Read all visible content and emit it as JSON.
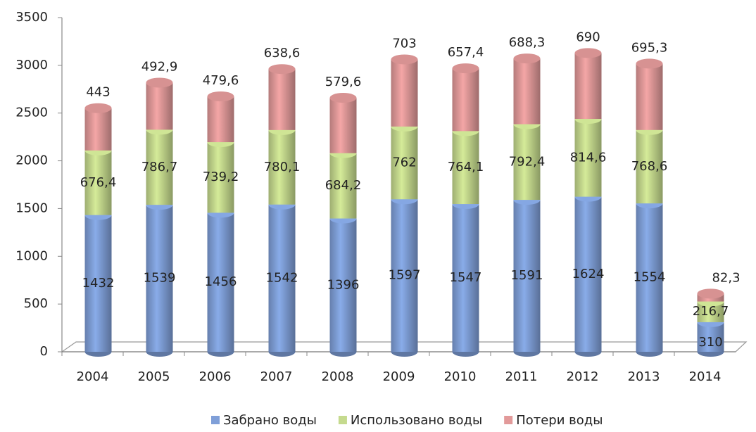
{
  "chart_data": {
    "type": "bar",
    "stacked": true,
    "categories": [
      "2004",
      "2005",
      "2006",
      "2007",
      "2008",
      "2009",
      "2010",
      "2011",
      "2012",
      "2013",
      "2014"
    ],
    "series": [
      {
        "name": "Забрано воды",
        "color": "#7f9fd8",
        "values": [
          1432,
          1539,
          1456,
          1542,
          1396,
          1597,
          1547,
          1591,
          1624,
          1554,
          310
        ]
      },
      {
        "name": "Использовано воды",
        "color": "#c5da8e",
        "values": [
          676.4,
          786.7,
          739.2,
          780.1,
          684.2,
          762,
          764.1,
          792.4,
          814.6,
          768.6,
          216.7
        ],
        "value_labels": [
          "676,4",
          "786,7",
          "739,2",
          "780,1",
          "684,2",
          "762",
          "764,1",
          "792,4",
          "814,6",
          "768,6",
          "216,7"
        ]
      },
      {
        "name": "Потери воды",
        "color": "#e29a9a",
        "values": [
          443,
          492.9,
          479.6,
          638.6,
          579.6,
          703,
          657.4,
          688.3,
          690,
          695.3,
          82.3
        ],
        "value_labels": [
          "443",
          "492,9",
          "479,6",
          "638,6",
          "579,6",
          "703",
          "657,4",
          "688,3",
          "690",
          "695,3",
          "82,3"
        ]
      }
    ],
    "ylim": [
      0,
      3500
    ],
    "yticks": [
      0,
      500,
      1000,
      1500,
      2000,
      2500,
      3000,
      3500
    ],
    "grid": false
  }
}
